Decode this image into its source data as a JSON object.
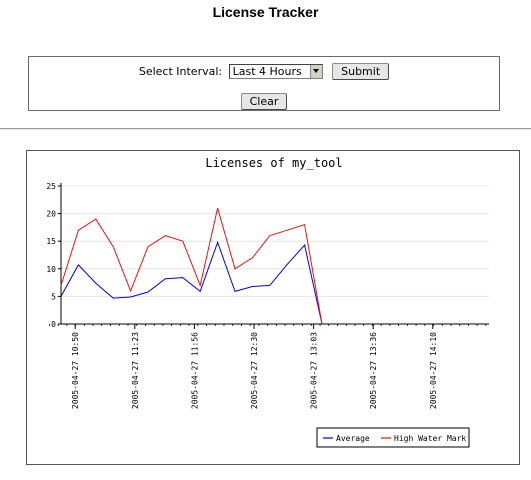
{
  "page": {
    "title": "License Tracker"
  },
  "form": {
    "interval_label": "Select Interval:",
    "interval_selected": "Last 4 Hours",
    "submit_label": "Submit",
    "clear_label": "Clear"
  },
  "chart_data": {
    "type": "line",
    "title": "Licenses of my_tool",
    "ylim": [
      0,
      25
    ],
    "yticks": [
      0,
      5,
      10,
      15,
      20,
      25
    ],
    "xticks": [
      "2005-04-27 10:50",
      "2005-04-27 11:23",
      "2005-04-27 11:56",
      "2005-04-27 12:30",
      "2005-04-27 13:03",
      "2005-04-27 13:36",
      "2005-04-27 14:10"
    ],
    "grid": true,
    "legend": "bottom-right",
    "series": [
      {
        "name": "Average",
        "color": "#0000dd",
        "values": [
          5.0,
          10.7,
          7.4,
          4.7,
          4.9,
          5.8,
          8.2,
          8.4,
          5.9,
          14.8,
          5.9,
          6.8,
          7.0,
          10.8,
          14.3,
          0
        ]
      },
      {
        "name": "High Water Mark",
        "color": "#ee1111",
        "values": [
          7.0,
          17.0,
          19.0,
          14.0,
          6.0,
          14.0,
          16.0,
          15.0,
          7.0,
          21.0,
          10.0,
          12.0,
          16.0,
          17.0,
          18.0,
          0
        ]
      }
    ]
  }
}
